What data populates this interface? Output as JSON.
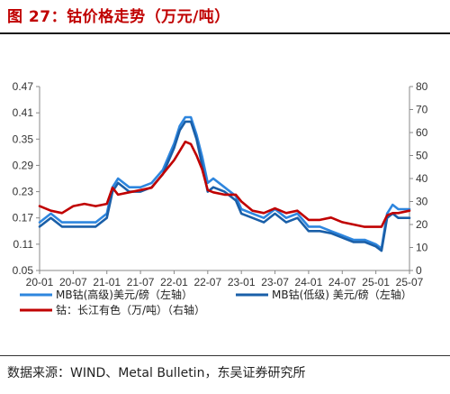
{
  "header": {
    "title": "图 27：钴价格走势（万元/吨）"
  },
  "footer": {
    "source": "数据来源：WIND、Metal Bulletin，东吴证券研究所"
  },
  "colors": {
    "mb_high": "#2E86DE",
    "mb_low": "#1A5FA8",
    "changjiang": "#C00000",
    "axis": "#888888"
  },
  "chart_data": {
    "type": "line",
    "left_axis": {
      "ylim": [
        0.05,
        0.47
      ],
      "ticks": [
        "0.05",
        "0.11",
        "0.17",
        "0.23",
        "0.29",
        "0.35",
        "0.41",
        "0.47"
      ]
    },
    "right_axis": {
      "ylim": [
        0,
        80
      ],
      "ticks": [
        "0",
        "10",
        "20",
        "30",
        "40",
        "50",
        "60",
        "70",
        "80"
      ]
    },
    "x_ticks": [
      "20-01",
      "20-07",
      "21-01",
      "21-07",
      "22-01",
      "22-07",
      "23-01",
      "23-07",
      "24-01",
      "24-07",
      "25-01",
      "25-07"
    ],
    "legend_placement": "bottom",
    "series": [
      {
        "name": "MB钴(高级)美元/磅（左轴）",
        "axis": "left",
        "color": "#2E86DE",
        "x": [
          "20-01",
          "20-03",
          "20-05",
          "20-07",
          "20-09",
          "20-11",
          "21-01",
          "21-02",
          "21-03",
          "21-05",
          "21-07",
          "21-09",
          "21-11",
          "22-01",
          "22-02",
          "22-03",
          "22-04",
          "22-05",
          "22-06",
          "22-07",
          "22-08",
          "22-10",
          "22-12",
          "23-01",
          "23-03",
          "23-05",
          "23-07",
          "23-09",
          "23-11",
          "24-01",
          "24-03",
          "24-05",
          "24-07",
          "24-09",
          "24-11",
          "25-01",
          "25-02",
          "25-03",
          "25-04",
          "25-05",
          "25-07"
        ],
        "values": [
          0.16,
          0.18,
          0.16,
          0.16,
          0.16,
          0.16,
          0.18,
          0.24,
          0.26,
          0.24,
          0.24,
          0.25,
          0.28,
          0.34,
          0.38,
          0.4,
          0.4,
          0.36,
          0.31,
          0.25,
          0.26,
          0.24,
          0.22,
          0.19,
          0.18,
          0.17,
          0.19,
          0.17,
          0.18,
          0.15,
          0.15,
          0.14,
          0.13,
          0.12,
          0.12,
          0.11,
          0.1,
          0.18,
          0.2,
          0.19,
          0.19
        ]
      },
      {
        "name": "MB钴(低级) 美元/磅（左轴）",
        "axis": "left",
        "color": "#1A5FA8",
        "x": [
          "20-01",
          "20-03",
          "20-05",
          "20-07",
          "20-09",
          "20-11",
          "21-01",
          "21-02",
          "21-03",
          "21-05",
          "21-07",
          "21-09",
          "21-11",
          "22-01",
          "22-02",
          "22-03",
          "22-04",
          "22-05",
          "22-06",
          "22-07",
          "22-08",
          "22-10",
          "22-12",
          "23-01",
          "23-03",
          "23-05",
          "23-07",
          "23-09",
          "23-11",
          "24-01",
          "24-03",
          "24-05",
          "24-07",
          "24-09",
          "24-11",
          "25-01",
          "25-02",
          "25-03",
          "25-04",
          "25-05",
          "25-07"
        ],
        "values": [
          0.15,
          0.17,
          0.15,
          0.15,
          0.15,
          0.15,
          0.17,
          0.23,
          0.25,
          0.23,
          0.23,
          0.24,
          0.27,
          0.33,
          0.37,
          0.39,
          0.39,
          0.35,
          0.29,
          0.23,
          0.24,
          0.23,
          0.21,
          0.18,
          0.17,
          0.16,
          0.18,
          0.16,
          0.17,
          0.14,
          0.14,
          0.135,
          0.125,
          0.115,
          0.115,
          0.105,
          0.095,
          0.17,
          0.18,
          0.17,
          0.17
        ]
      },
      {
        "name": "钴：长江有色（万/吨）（右轴）",
        "axis": "right",
        "color": "#C00000",
        "x": [
          "20-01",
          "20-03",
          "20-05",
          "20-07",
          "20-09",
          "20-11",
          "21-01",
          "21-02",
          "21-03",
          "21-05",
          "21-07",
          "21-09",
          "21-11",
          "22-01",
          "22-02",
          "22-03",
          "22-04",
          "22-05",
          "22-06",
          "22-07",
          "22-08",
          "22-10",
          "22-12",
          "23-01",
          "23-03",
          "23-05",
          "23-07",
          "23-09",
          "23-11",
          "24-01",
          "24-03",
          "24-05",
          "24-07",
          "24-09",
          "24-11",
          "25-01",
          "25-02",
          "25-03",
          "25-04",
          "25-05",
          "25-07"
        ],
        "values": [
          28,
          26,
          25,
          28,
          29,
          28,
          29,
          36,
          33,
          34,
          35,
          36,
          42,
          48,
          52,
          56,
          55,
          50,
          44,
          35,
          34,
          33,
          33,
          30,
          26,
          25,
          27,
          25,
          26,
          22,
          22,
          23,
          21,
          20,
          19,
          19,
          19,
          24,
          25,
          25,
          26
        ]
      }
    ]
  }
}
